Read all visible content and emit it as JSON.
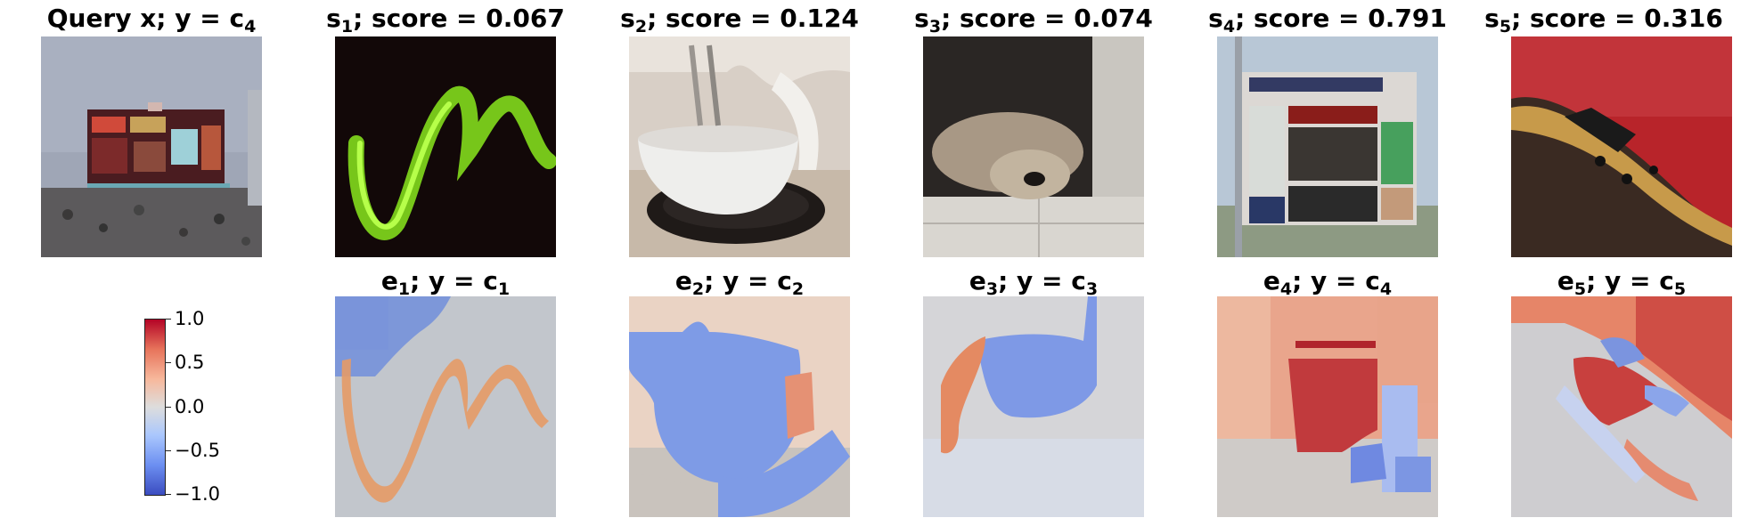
{
  "query": {
    "title_prefix": "Query x; ",
    "title_y": "y = c",
    "title_sub": "4"
  },
  "samples": [
    {
      "letter": "s",
      "sub": "1",
      "score_text": "; score = 0.067"
    },
    {
      "letter": "s",
      "sub": "2",
      "score_text": "; score = 0.124"
    },
    {
      "letter": "s",
      "sub": "3",
      "score_text": "; score = 0.074"
    },
    {
      "letter": "s",
      "sub": "4",
      "score_text": "; score = 0.791"
    },
    {
      "letter": "s",
      "sub": "5",
      "score_text": "; score = 0.316"
    }
  ],
  "explanations": [
    {
      "letter": "e",
      "sub": "1",
      "mid": "; y = c",
      "csub": "1"
    },
    {
      "letter": "e",
      "sub": "2",
      "mid": "; y = c",
      "csub": "2"
    },
    {
      "letter": "e",
      "sub": "3",
      "mid": "; y = c",
      "csub": "3"
    },
    {
      "letter": "e",
      "sub": "4",
      "mid": "; y = c",
      "csub": "4"
    },
    {
      "letter": "e",
      "sub": "5",
      "mid": "; y = c",
      "csub": "5"
    }
  ],
  "colorbar": {
    "ticks": [
      "1.0",
      "0.5",
      "0.0",
      "−0.5",
      "−1.0"
    ],
    "range": [
      -1.0,
      1.0
    ],
    "colormap": "coolwarm"
  },
  "colors": {
    "negative": "#3b4cc0",
    "neutral": "#dddddd",
    "positive": "#b40426"
  }
}
